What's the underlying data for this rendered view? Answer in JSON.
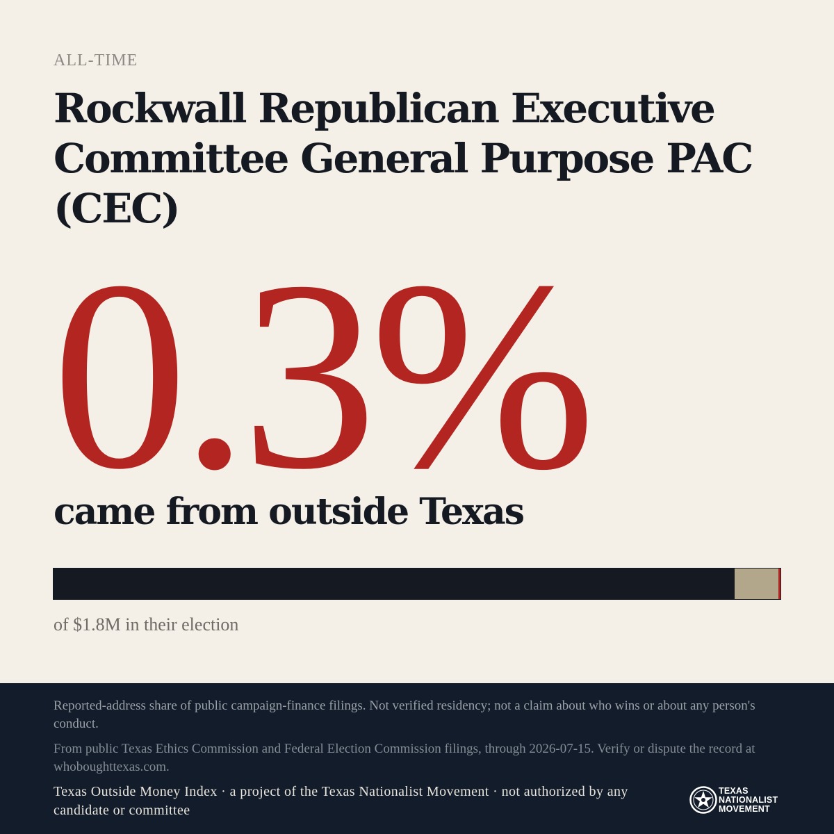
{
  "header": {
    "eyebrow": "ALL-TIME",
    "title": "Rockwall Republican Executive Committee General Purpose PAC (CEC)"
  },
  "stat": {
    "value": "0.3%",
    "caption": "came from outside Texas"
  },
  "share_bar": {
    "texas_share": 0.937,
    "other_share": 0.06,
    "outside_share": 0.003,
    "colors": {
      "texas": "#151a22",
      "other": "#b3a78b",
      "outside": "#b32520"
    },
    "caption": "of $1.8M in their election"
  },
  "footer": {
    "disclaimer": "Reported-address share of public campaign-finance filings. Not verified residency; not a claim about who wins or about any person's conduct.",
    "source": "From public Texas Ethics Commission and Federal Election Commission filings, through 2026-07-15. Verify or dispute the record at whoboughttexas.com.",
    "credit": "Texas Outside Money Index · a project of the Texas Nationalist Movement · not authorized by any candidate or committee",
    "logo": {
      "line1": "TEXAS",
      "line2": "NATIONALIST",
      "line3": "MOVEMENT",
      "icon": "star-emblem-icon"
    }
  },
  "colors": {
    "background": "#f4efe7",
    "accent": "#b32520",
    "ink": "#151a22",
    "footer_bg": "#121c2a"
  }
}
